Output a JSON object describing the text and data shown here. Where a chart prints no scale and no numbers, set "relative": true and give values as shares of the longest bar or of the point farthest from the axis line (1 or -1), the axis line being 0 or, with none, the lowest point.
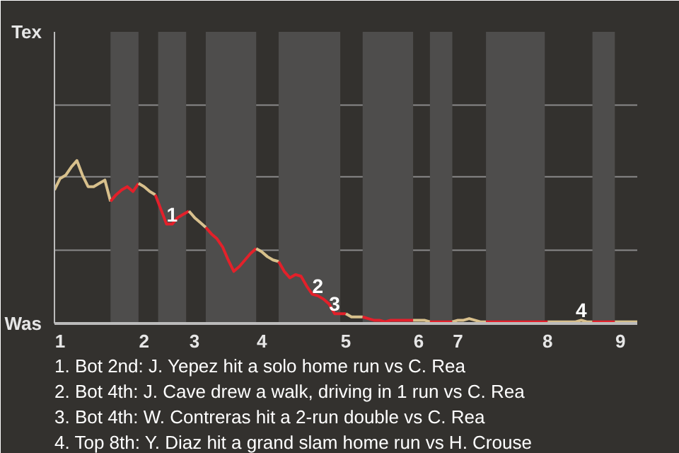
{
  "chart_data": {
    "type": "line",
    "categories": [
      null,
      "1",
      null,
      null,
      null,
      null,
      null,
      null,
      null,
      null,
      null,
      null,
      null,
      null,
      null,
      null,
      "2",
      null,
      null,
      null,
      null,
      null,
      null,
      null,
      null,
      "3",
      null,
      null,
      null,
      null,
      null,
      null,
      null,
      null,
      null,
      null,
      null,
      "4",
      null,
      null,
      null,
      null,
      null,
      null,
      null,
      null,
      null,
      null,
      null,
      null,
      null,
      null,
      "5",
      null,
      null,
      null,
      null,
      null,
      null,
      null,
      null,
      null,
      null,
      null,
      null,
      "6",
      null,
      null,
      null,
      null,
      null,
      null,
      "7",
      null,
      null,
      null,
      null,
      null,
      null,
      null,
      null,
      null,
      null,
      null,
      null,
      null,
      null,
      null,
      "8",
      null,
      null,
      null,
      null,
      null,
      null,
      null,
      null,
      null,
      null,
      null,
      null,
      "9",
      null,
      null,
      null
    ],
    "relative": true,
    "line_style": "solid",
    "ref_lines": [
      {
        "axis": "y",
        "value": 0.45,
        "color": "#8a8a8a"
      },
      {
        "axis": "y",
        "value": 0.9,
        "color": "#8a8a8a"
      },
      {
        "axis": "y",
        "value": 1.34,
        "color": "#8a8a8a"
      }
    ],
    "series": [
      {
        "color": "#d8c08c",
        "values": [
          0.82,
          0.89,
          0.91,
          0.96,
          1,
          0.91,
          0.84,
          0.84,
          0.86,
          0.88,
          0.75,
          null,
          null,
          null,
          null,
          null,
          null,
          null,
          null,
          null,
          null,
          null,
          null,
          null,
          null,
          null,
          null,
          null,
          null,
          null,
          null,
          null,
          null,
          null,
          null,
          null,
          null,
          null,
          null,
          null,
          null,
          null,
          null,
          null,
          null,
          null,
          null,
          null,
          null,
          null,
          null,
          null,
          null,
          null,
          null,
          null,
          null,
          null,
          null,
          null,
          null,
          null,
          null,
          null,
          null,
          null,
          null,
          null,
          null,
          null,
          null,
          null,
          null,
          null,
          null,
          null,
          null,
          null,
          null,
          null,
          null,
          null,
          null,
          null,
          null,
          null,
          null,
          null,
          null,
          null,
          null,
          null,
          null,
          null,
          null,
          null,
          null,
          null,
          null,
          null,
          null,
          null,
          null,
          null,
          null
        ]
      },
      {
        "color": "#e3202a",
        "values": [
          null,
          null,
          null,
          null,
          null,
          null,
          null,
          null,
          null,
          null,
          0.75,
          0.79,
          0.82,
          0.84,
          0.81,
          0.86,
          null,
          null,
          null,
          null,
          null,
          null,
          null,
          null,
          null,
          null,
          null,
          null,
          null,
          null,
          null,
          null,
          null,
          null,
          null,
          null,
          null,
          null,
          null,
          null,
          null,
          null,
          null,
          null,
          null,
          null,
          null,
          null,
          null,
          null,
          null,
          null,
          null,
          null,
          null,
          null,
          null,
          null,
          null,
          null,
          null,
          null,
          null,
          null,
          null,
          null,
          null,
          null,
          null,
          null,
          null,
          null,
          null,
          null,
          null,
          null,
          null,
          null,
          null,
          null,
          null,
          null,
          null,
          null,
          null,
          null,
          null,
          null,
          null,
          null,
          null,
          null,
          null,
          null,
          null,
          null,
          null,
          null,
          null,
          null,
          null,
          null,
          null,
          null,
          null
        ]
      },
      {
        "color": "#d8c08d",
        "values": [
          null,
          null,
          null,
          null,
          null,
          null,
          null,
          null,
          null,
          null,
          null,
          null,
          null,
          null,
          null,
          0.86,
          0.84,
          0.81,
          0.79,
          null,
          null,
          null,
          null,
          null,
          null,
          null,
          null,
          null,
          null,
          null,
          null,
          null,
          null,
          null,
          null,
          null,
          null,
          null,
          null,
          null,
          null,
          null,
          null,
          null,
          null,
          null,
          null,
          null,
          null,
          null,
          null,
          null,
          null,
          null,
          null,
          null,
          null,
          null,
          null,
          null,
          null,
          null,
          null,
          null,
          null,
          null,
          null,
          null,
          null,
          null,
          null,
          null,
          null,
          null,
          null,
          null,
          null,
          null,
          null,
          null,
          null,
          null,
          null,
          null,
          null,
          null,
          null,
          null,
          null,
          null,
          null,
          null,
          null,
          null,
          null,
          null,
          null,
          null,
          null,
          null,
          null,
          null,
          null,
          null,
          null
        ]
      },
      {
        "color": "#e3202b",
        "values": [
          null,
          null,
          null,
          null,
          null,
          null,
          null,
          null,
          null,
          null,
          null,
          null,
          null,
          null,
          null,
          null,
          null,
          null,
          0.79,
          0.7,
          0.61,
          0.61,
          0.65,
          0.67,
          0.69,
          null,
          null,
          null,
          null,
          null,
          null,
          null,
          null,
          null,
          null,
          null,
          null,
          null,
          null,
          null,
          null,
          null,
          null,
          null,
          null,
          null,
          null,
          null,
          null,
          null,
          null,
          null,
          null,
          null,
          null,
          null,
          null,
          null,
          null,
          null,
          null,
          null,
          null,
          null,
          null,
          null,
          null,
          null,
          null,
          null,
          null,
          null,
          null,
          null,
          null,
          null,
          null,
          null,
          null,
          null,
          null,
          null,
          null,
          null,
          null,
          null,
          null,
          null,
          null,
          null,
          null,
          null,
          null,
          null,
          null,
          null,
          null,
          null,
          null,
          null,
          null,
          null,
          null,
          null,
          null
        ]
      },
      {
        "color": "#d8c08e",
        "values": [
          null,
          null,
          null,
          null,
          null,
          null,
          null,
          null,
          null,
          null,
          null,
          null,
          null,
          null,
          null,
          null,
          null,
          null,
          null,
          null,
          null,
          null,
          null,
          null,
          0.69,
          0.65,
          0.62,
          0.59,
          null,
          null,
          null,
          null,
          null,
          null,
          null,
          null,
          null,
          null,
          null,
          null,
          null,
          null,
          null,
          null,
          null,
          null,
          null,
          null,
          null,
          null,
          null,
          null,
          null,
          null,
          null,
          null,
          null,
          null,
          null,
          null,
          null,
          null,
          null,
          null,
          null,
          null,
          null,
          null,
          null,
          null,
          null,
          null,
          null,
          null,
          null,
          null,
          null,
          null,
          null,
          null,
          null,
          null,
          null,
          null,
          null,
          null,
          null,
          null,
          null,
          null,
          null,
          null,
          null,
          null,
          null,
          null,
          null,
          null,
          null,
          null,
          null,
          null,
          null,
          null,
          null
        ]
      },
      {
        "color": "#e3212a",
        "values": [
          null,
          null,
          null,
          null,
          null,
          null,
          null,
          null,
          null,
          null,
          null,
          null,
          null,
          null,
          null,
          null,
          null,
          null,
          null,
          null,
          null,
          null,
          null,
          null,
          null,
          null,
          null,
          0.59,
          0.55,
          0.52,
          0.47,
          0.39,
          0.32,
          0.35,
          0.39,
          0.43,
          0.46,
          null,
          null,
          null,
          null,
          null,
          null,
          null,
          null,
          null,
          null,
          null,
          null,
          null,
          null,
          null,
          null,
          null,
          null,
          null,
          null,
          null,
          null,
          null,
          null,
          null,
          null,
          null,
          null,
          null,
          null,
          null,
          null,
          null,
          null,
          null,
          null,
          null,
          null,
          null,
          null,
          null,
          null,
          null,
          null,
          null,
          null,
          null,
          null,
          null,
          null,
          null,
          null,
          null,
          null,
          null,
          null,
          null,
          null,
          null,
          null,
          null,
          null,
          null,
          null,
          null,
          null,
          null,
          null
        ]
      },
      {
        "color": "#d8c18c",
        "values": [
          null,
          null,
          null,
          null,
          null,
          null,
          null,
          null,
          null,
          null,
          null,
          null,
          null,
          null,
          null,
          null,
          null,
          null,
          null,
          null,
          null,
          null,
          null,
          null,
          null,
          null,
          null,
          null,
          null,
          null,
          null,
          null,
          null,
          null,
          null,
          null,
          0.46,
          0.44,
          0.41,
          0.39,
          0.38,
          null,
          null,
          null,
          null,
          null,
          null,
          null,
          null,
          null,
          null,
          null,
          null,
          null,
          null,
          null,
          null,
          null,
          null,
          null,
          null,
          null,
          null,
          null,
          null,
          null,
          null,
          null,
          null,
          null,
          null,
          null,
          null,
          null,
          null,
          null,
          null,
          null,
          null,
          null,
          null,
          null,
          null,
          null,
          null,
          null,
          null,
          null,
          null,
          null,
          null,
          null,
          null,
          null,
          null,
          null,
          null,
          null,
          null,
          null,
          null,
          null,
          null,
          null,
          null
        ]
      },
      {
        "color": "#e2202a",
        "values": [
          null,
          null,
          null,
          null,
          null,
          null,
          null,
          null,
          null,
          null,
          null,
          null,
          null,
          null,
          null,
          null,
          null,
          null,
          null,
          null,
          null,
          null,
          null,
          null,
          null,
          null,
          null,
          null,
          null,
          null,
          null,
          null,
          null,
          null,
          null,
          null,
          null,
          null,
          null,
          null,
          0.38,
          0.32,
          0.28,
          0.3,
          0.29,
          0.23,
          0.18,
          0.17,
          0.15,
          0.12,
          0.06,
          0.06,
          0.06,
          null,
          null,
          null,
          null,
          null,
          null,
          null,
          null,
          null,
          null,
          null,
          null,
          null,
          null,
          null,
          null,
          null,
          null,
          null,
          null,
          null,
          null,
          null,
          null,
          null,
          null,
          null,
          null,
          null,
          null,
          null,
          null,
          null,
          null,
          null,
          null,
          null,
          null,
          null,
          null,
          null,
          null,
          null,
          null,
          null,
          null,
          null,
          null,
          null,
          null,
          null,
          null
        ]
      },
      {
        "color": "#d7c08c",
        "values": [
          null,
          null,
          null,
          null,
          null,
          null,
          null,
          null,
          null,
          null,
          null,
          null,
          null,
          null,
          null,
          null,
          null,
          null,
          null,
          null,
          null,
          null,
          null,
          null,
          null,
          null,
          null,
          null,
          null,
          null,
          null,
          null,
          null,
          null,
          null,
          null,
          null,
          null,
          null,
          null,
          null,
          null,
          null,
          null,
          null,
          null,
          null,
          null,
          null,
          null,
          null,
          null,
          0.06,
          0.04,
          0.04,
          0.04,
          null,
          null,
          null,
          null,
          null,
          null,
          null,
          null,
          null,
          null,
          null,
          null,
          null,
          null,
          null,
          null,
          null,
          null,
          null,
          null,
          null,
          null,
          null,
          null,
          null,
          null,
          null,
          null,
          null,
          null,
          null,
          null,
          null,
          null,
          null,
          null,
          null,
          null,
          null,
          null,
          null,
          null,
          null,
          null,
          null,
          null,
          null,
          null,
          null
        ]
      },
      {
        "color": "#e3202c",
        "values": [
          null,
          null,
          null,
          null,
          null,
          null,
          null,
          null,
          null,
          null,
          null,
          null,
          null,
          null,
          null,
          null,
          null,
          null,
          null,
          null,
          null,
          null,
          null,
          null,
          null,
          null,
          null,
          null,
          null,
          null,
          null,
          null,
          null,
          null,
          null,
          null,
          null,
          null,
          null,
          null,
          null,
          null,
          null,
          null,
          null,
          null,
          null,
          null,
          null,
          null,
          null,
          null,
          null,
          null,
          null,
          0.04,
          0.03,
          0.02,
          0.02,
          0.01,
          0.02,
          0.02,
          0.02,
          0.02,
          0.02,
          null,
          null,
          null,
          null,
          null,
          null,
          null,
          null,
          null,
          null,
          null,
          null,
          null,
          null,
          null,
          null,
          null,
          null,
          null,
          null,
          null,
          null,
          null,
          null,
          null,
          null,
          null,
          null,
          null,
          null,
          null,
          null,
          null,
          null,
          null,
          null,
          null,
          null,
          null,
          null
        ]
      },
      {
        "color": "#d8c08b",
        "values": [
          null,
          null,
          null,
          null,
          null,
          null,
          null,
          null,
          null,
          null,
          null,
          null,
          null,
          null,
          null,
          null,
          null,
          null,
          null,
          null,
          null,
          null,
          null,
          null,
          null,
          null,
          null,
          null,
          null,
          null,
          null,
          null,
          null,
          null,
          null,
          null,
          null,
          null,
          null,
          null,
          null,
          null,
          null,
          null,
          null,
          null,
          null,
          null,
          null,
          null,
          null,
          null,
          null,
          null,
          null,
          null,
          null,
          null,
          null,
          null,
          null,
          null,
          null,
          null,
          0.02,
          0.02,
          0.02,
          0.01,
          null,
          null,
          null,
          null,
          null,
          null,
          null,
          null,
          null,
          null,
          null,
          null,
          null,
          null,
          null,
          null,
          null,
          null,
          null,
          null,
          null,
          null,
          null,
          null,
          null,
          null,
          null,
          null,
          null,
          null,
          null,
          null,
          null,
          null,
          null,
          null,
          null
        ]
      },
      {
        "color": "#e4202a",
        "values": [
          null,
          null,
          null,
          null,
          null,
          null,
          null,
          null,
          null,
          null,
          null,
          null,
          null,
          null,
          null,
          null,
          null,
          null,
          null,
          null,
          null,
          null,
          null,
          null,
          null,
          null,
          null,
          null,
          null,
          null,
          null,
          null,
          null,
          null,
          null,
          null,
          null,
          null,
          null,
          null,
          null,
          null,
          null,
          null,
          null,
          null,
          null,
          null,
          null,
          null,
          null,
          null,
          null,
          null,
          null,
          null,
          null,
          null,
          null,
          null,
          null,
          null,
          null,
          null,
          null,
          null,
          null,
          0.01,
          0.01,
          0.01,
          0.01,
          0.01,
          null,
          null,
          null,
          null,
          null,
          null,
          null,
          null,
          null,
          null,
          null,
          null,
          null,
          null,
          null,
          null,
          null,
          null,
          null,
          null,
          null,
          null,
          null,
          null,
          null,
          null,
          null,
          null,
          null,
          null,
          null,
          null,
          null
        ]
      },
      {
        "color": "#d9c08c",
        "values": [
          null,
          null,
          null,
          null,
          null,
          null,
          null,
          null,
          null,
          null,
          null,
          null,
          null,
          null,
          null,
          null,
          null,
          null,
          null,
          null,
          null,
          null,
          null,
          null,
          null,
          null,
          null,
          null,
          null,
          null,
          null,
          null,
          null,
          null,
          null,
          null,
          null,
          null,
          null,
          null,
          null,
          null,
          null,
          null,
          null,
          null,
          null,
          null,
          null,
          null,
          null,
          null,
          null,
          null,
          null,
          null,
          null,
          null,
          null,
          null,
          null,
          null,
          null,
          null,
          null,
          null,
          null,
          null,
          null,
          null,
          null,
          0.01,
          0.02,
          0.02,
          0.03,
          0.02,
          0.01,
          0.01,
          null,
          null,
          null,
          null,
          null,
          null,
          null,
          null,
          null,
          null,
          null,
          null,
          null,
          null,
          null,
          null,
          null,
          null,
          null,
          null,
          null,
          null,
          null,
          null,
          null,
          null,
          null
        ]
      },
      {
        "color": "#e31f2a",
        "values": [
          null,
          null,
          null,
          null,
          null,
          null,
          null,
          null,
          null,
          null,
          null,
          null,
          null,
          null,
          null,
          null,
          null,
          null,
          null,
          null,
          null,
          null,
          null,
          null,
          null,
          null,
          null,
          null,
          null,
          null,
          null,
          null,
          null,
          null,
          null,
          null,
          null,
          null,
          null,
          null,
          null,
          null,
          null,
          null,
          null,
          null,
          null,
          null,
          null,
          null,
          null,
          null,
          null,
          null,
          null,
          null,
          null,
          null,
          null,
          null,
          null,
          null,
          null,
          null,
          null,
          null,
          null,
          null,
          null,
          null,
          null,
          null,
          null,
          null,
          null,
          null,
          null,
          0.01,
          0.01,
          0.01,
          0.01,
          0.01,
          0.01,
          0.01,
          0.01,
          0.01,
          0.01,
          0.01,
          0.01,
          null,
          null,
          null,
          null,
          null,
          null,
          null,
          null,
          null,
          null,
          null,
          null,
          null,
          null,
          null,
          null
        ]
      },
      {
        "color": "#d8bf8c",
        "values": [
          null,
          null,
          null,
          null,
          null,
          null,
          null,
          null,
          null,
          null,
          null,
          null,
          null,
          null,
          null,
          null,
          null,
          null,
          null,
          null,
          null,
          null,
          null,
          null,
          null,
          null,
          null,
          null,
          null,
          null,
          null,
          null,
          null,
          null,
          null,
          null,
          null,
          null,
          null,
          null,
          null,
          null,
          null,
          null,
          null,
          null,
          null,
          null,
          null,
          null,
          null,
          null,
          null,
          null,
          null,
          null,
          null,
          null,
          null,
          null,
          null,
          null,
          null,
          null,
          null,
          null,
          null,
          null,
          null,
          null,
          null,
          null,
          null,
          null,
          null,
          null,
          null,
          null,
          null,
          null,
          null,
          null,
          null,
          null,
          null,
          null,
          null,
          null,
          0.01,
          0.01,
          0.01,
          0.01,
          0.01,
          0.01,
          0.02,
          0.01,
          0.01,
          null,
          null,
          null,
          null,
          null,
          null,
          null,
          null
        ]
      },
      {
        "color": "#e3222a",
        "values": [
          null,
          null,
          null,
          null,
          null,
          null,
          null,
          null,
          null,
          null,
          null,
          null,
          null,
          null,
          null,
          null,
          null,
          null,
          null,
          null,
          null,
          null,
          null,
          null,
          null,
          null,
          null,
          null,
          null,
          null,
          null,
          null,
          null,
          null,
          null,
          null,
          null,
          null,
          null,
          null,
          null,
          null,
          null,
          null,
          null,
          null,
          null,
          null,
          null,
          null,
          null,
          null,
          null,
          null,
          null,
          null,
          null,
          null,
          null,
          null,
          null,
          null,
          null,
          null,
          null,
          null,
          null,
          null,
          null,
          null,
          null,
          null,
          null,
          null,
          null,
          null,
          null,
          null,
          null,
          null,
          null,
          null,
          null,
          null,
          null,
          null,
          null,
          null,
          null,
          null,
          null,
          null,
          null,
          null,
          null,
          null,
          0.01,
          0.01,
          0.01,
          0.01,
          0.01,
          null,
          null,
          null,
          null
        ]
      },
      {
        "color": "#d7c18c",
        "values": [
          null,
          null,
          null,
          null,
          null,
          null,
          null,
          null,
          null,
          null,
          null,
          null,
          null,
          null,
          null,
          null,
          null,
          null,
          null,
          null,
          null,
          null,
          null,
          null,
          null,
          null,
          null,
          null,
          null,
          null,
          null,
          null,
          null,
          null,
          null,
          null,
          null,
          null,
          null,
          null,
          null,
          null,
          null,
          null,
          null,
          null,
          null,
          null,
          null,
          null,
          null,
          null,
          null,
          null,
          null,
          null,
          null,
          null,
          null,
          null,
          null,
          null,
          null,
          null,
          null,
          null,
          null,
          null,
          null,
          null,
          null,
          null,
          null,
          null,
          null,
          null,
          null,
          null,
          null,
          null,
          null,
          null,
          null,
          null,
          null,
          null,
          null,
          null,
          null,
          null,
          null,
          null,
          null,
          null,
          null,
          null,
          null,
          null,
          null,
          null,
          0.01,
          0.01,
          0.01,
          0.01,
          0.01
        ]
      }
    ],
    "annotations": [
      "Tex",
      "Was",
      "1",
      "2",
      "3",
      "4",
      "1. Bot 2nd: J. Yepez hit a solo home run vs C. Rea",
      "2. Bot 4th: J. Cave drew a walk, driving in 1 run vs C. Rea",
      "3. Bot 4th: W. Contreras hit a 2-run double vs C. Rea",
      "4. Top 8th: Y. Diaz hit a grand slam home run vs H. Crouse"
    ]
  }
}
